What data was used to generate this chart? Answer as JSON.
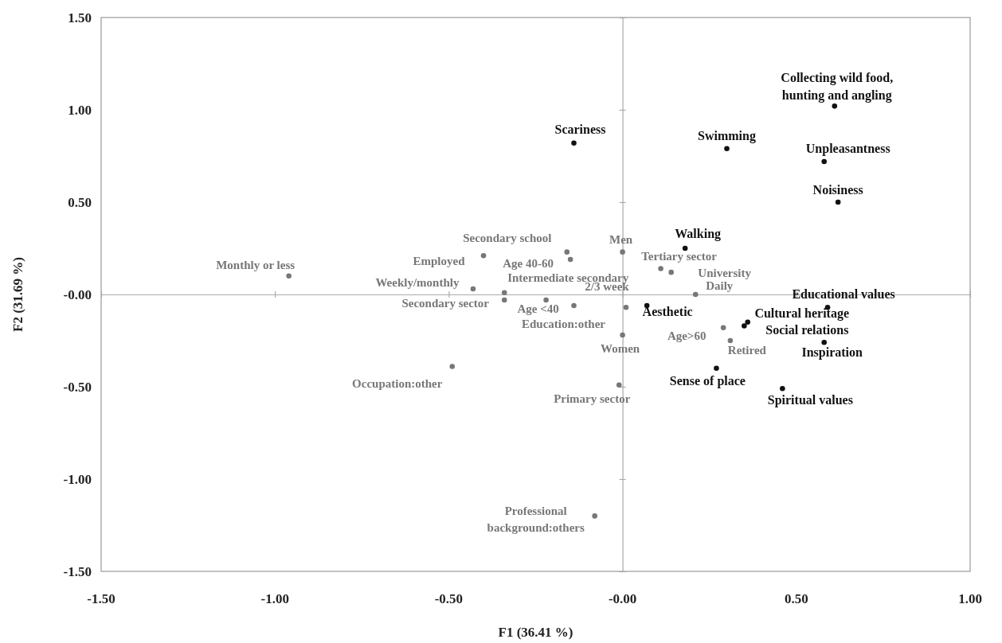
{
  "chart_data": {
    "type": "scatter",
    "xlabel": "F1 (36.41 %)",
    "ylabel": "F2 (31.69 %)",
    "xlim": [
      -1.5,
      1.0
    ],
    "ylim": [
      -1.5,
      1.5
    ],
    "xticks": [
      {
        "value": -1.5,
        "label": "-1.50"
      },
      {
        "value": -1.0,
        "label": "-1.00"
      },
      {
        "value": -0.5,
        "label": "-0.50"
      },
      {
        "value": 0,
        "label": "-0.00"
      },
      {
        "value": 0.5,
        "label": "0.50"
      },
      {
        "value": 1.0,
        "label": "1.00"
      }
    ],
    "yticks": [
      {
        "value": -1.5,
        "label": "-1.50"
      },
      {
        "value": -1.0,
        "label": "-1.00"
      },
      {
        "value": -0.5,
        "label": "-0.50"
      },
      {
        "value": 0,
        "label": "-0.00"
      },
      {
        "value": 0.5,
        "label": "0.50"
      },
      {
        "value": 1.0,
        "label": "1.00"
      },
      {
        "value": 1.5,
        "label": "1.50"
      }
    ],
    "marker": "circle",
    "series": [
      {
        "color": "#111111",
        "x": [
          0.61,
          -0.14,
          0.3,
          0.58,
          0.62,
          0.18,
          0.59,
          0.36,
          0.35,
          0.58,
          0.27,
          0.46,
          0.07
        ],
        "values": [
          1.02,
          0.82,
          0.79,
          0.72,
          0.5,
          0.25,
          -0.07,
          -0.15,
          -0.17,
          -0.26,
          -0.4,
          -0.51,
          -0.06
        ]
      },
      {
        "color": "#777777",
        "x": [
          -0.96,
          -0.4,
          -0.16,
          -0.15,
          0.0,
          0.11,
          0.14,
          -0.43,
          -0.34,
          -0.34,
          0.01,
          -0.22,
          -0.14,
          0.21,
          0.0,
          0.29,
          0.31,
          -0.49,
          -0.01,
          -0.08
        ],
        "values": [
          0.1,
          0.21,
          0.23,
          0.19,
          0.23,
          0.14,
          0.12,
          0.03,
          0.01,
          -0.03,
          -0.07,
          -0.03,
          -0.06,
          0.0,
          -0.22,
          -0.18,
          -0.25,
          -0.39,
          -0.49,
          -1.2
        ]
      }
    ],
    "annotations": [
      {
        "text": "Collecting wild food,\nhunting and  angling",
        "x": 0.61,
        "y": 1.02
      },
      {
        "text": "Scariness",
        "x": -0.14,
        "y": 0.82
      },
      {
        "text": "Swimming",
        "x": 0.3,
        "y": 0.79
      },
      {
        "text": "Unpleasantness",
        "x": 0.58,
        "y": 0.72
      },
      {
        "text": "Noisiness",
        "x": 0.62,
        "y": 0.5
      },
      {
        "text": "Walking",
        "x": 0.18,
        "y": 0.25
      },
      {
        "text": "Educational values",
        "x": 0.59,
        "y": -0.07
      },
      {
        "text": "Cultural heritage",
        "x": 0.36,
        "y": -0.15
      },
      {
        "text": "Social relations",
        "x": 0.35,
        "y": -0.17
      },
      {
        "text": "Inspiration",
        "x": 0.58,
        "y": -0.26
      },
      {
        "text": "Sense of place",
        "x": 0.27,
        "y": -0.4
      },
      {
        "text": "Spiritual values",
        "x": 0.46,
        "y": -0.51
      },
      {
        "text": "Aesthetic",
        "x": 0.07,
        "y": -0.06
      },
      {
        "text": "Monthly or less",
        "x": -0.96,
        "y": 0.1
      },
      {
        "text": "Employed",
        "x": -0.4,
        "y": 0.21
      },
      {
        "text": "Secondary school",
        "x": -0.16,
        "y": 0.23
      },
      {
        "text": "Age 40-60",
        "x": -0.15,
        "y": 0.19
      },
      {
        "text": "Men",
        "x": 0.0,
        "y": 0.23
      },
      {
        "text": "Tertiary sector",
        "x": 0.11,
        "y": 0.14
      },
      {
        "text": "University",
        "x": 0.14,
        "y": 0.12
      },
      {
        "text": "Weekly/monthly",
        "x": -0.43,
        "y": 0.03
      },
      {
        "text": "Secondary sector",
        "x": -0.34,
        "y": 0.01
      },
      {
        "text": "Intermediate secondary",
        "x": -0.34,
        "y": -0.03
      },
      {
        "text": "2/3 week",
        "x": 0.01,
        "y": -0.07
      },
      {
        "text": "Age <40",
        "x": -0.22,
        "y": -0.03
      },
      {
        "text": "Education:other",
        "x": -0.14,
        "y": -0.06
      },
      {
        "text": "Daily",
        "x": 0.21,
        "y": 0.0
      },
      {
        "text": "Women",
        "x": 0.0,
        "y": -0.22
      },
      {
        "text": "Age>60",
        "x": 0.29,
        "y": -0.18
      },
      {
        "text": "Retired",
        "x": 0.31,
        "y": -0.25
      },
      {
        "text": "Occupation:other",
        "x": -0.49,
        "y": -0.39
      },
      {
        "text": "Primary sector",
        "x": -0.01,
        "y": -0.49
      },
      {
        "text": "Professional\nbackground:others",
        "x": -0.08,
        "y": -1.2
      }
    ]
  }
}
